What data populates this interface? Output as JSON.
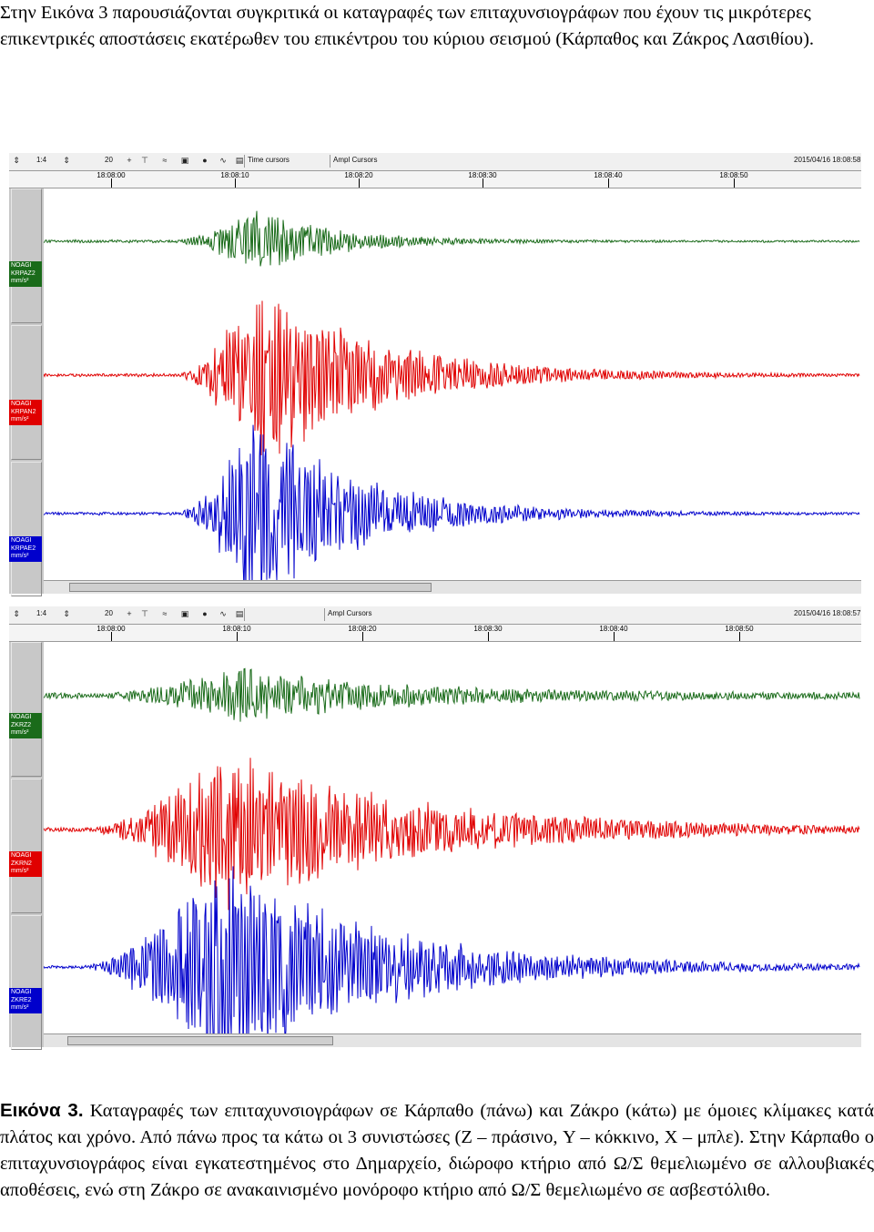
{
  "intro_text": "Στην Εικόνα 3 παρουσιάζονται συγκριτικά οι καταγραφές των επιταχυνσιογράφων που έχουν τις μικρότερες επικεντρικές αποστάσεις εκατέρωθεν του επικέντρου του κύριου σεισμού (Κάρπαθος και Ζάκρος Λασιθίου).",
  "figures": [
    {
      "toolbar": {
        "scale": "1:4",
        "step": "20",
        "time_cursors": "Time cursors",
        "ampl_cursors": "Ampl Cursors",
        "datetime": "2015/04/16 18:08:58"
      },
      "time_ticks": [
        "18:08:00",
        "18:08:10",
        "18:08:20",
        "18:08:30",
        "18:08:40",
        "18:08:50"
      ],
      "channels": [
        {
          "station": "NOAGI",
          "code": "KRPAZ2",
          "unit": "mm/s²",
          "color": "#1a6b1a"
        },
        {
          "station": "NOAGI",
          "code": "KRPAN2",
          "unit": "mm/s²",
          "color": "#e00000"
        },
        {
          "station": "NOAGI",
          "code": "KRPAE2",
          "unit": "mm/s²",
          "color": "#0000cc"
        }
      ]
    },
    {
      "toolbar": {
        "scale": "1:4",
        "step": "20",
        "time_cursors": "",
        "ampl_cursors": "Ampl Cursors",
        "datetime": "2015/04/16 18:08:57"
      },
      "time_ticks": [
        "18:08:00",
        "18:08:10",
        "18:08:20",
        "18:08:30",
        "18:08:40",
        "18:08:50"
      ],
      "channels": [
        {
          "station": "NOAGI",
          "code": "ZKRZ2",
          "unit": "mm/s²",
          "color": "#1a6b1a"
        },
        {
          "station": "NOAGI",
          "code": "ZKRN2",
          "unit": "mm/s²",
          "color": "#e00000"
        },
        {
          "station": "NOAGI",
          "code": "ZKRE2",
          "unit": "mm/s²",
          "color": "#0000cc"
        }
      ]
    }
  ],
  "toolbar_icons": [
    "arrow-up-down-icon",
    "arrow-up-down-icon",
    "zoom-in-icon",
    "zoom-out-icon",
    "pick-icon",
    "filter-icon",
    "fit-icon",
    "print-icon",
    "color-icon",
    "bandpass-icon"
  ],
  "caption": {
    "label": "Εικόνα 3.",
    "text": " Καταγραφές των επιταχυνσιογράφων σε Κάρπαθο (πάνω) και Ζάκρο (κάτω) με όμοιες κλίμακες κατά πλάτος και χρόνο. Από πάνω προς τα κάτω οι 3 συνιστώσες (Z – πράσινο, Y – κόκκινο, X – μπλε). Στην Κάρπαθο ο επιταχυνσιογράφος είναι εγκατεστημένος στο Δημαρχείο, διώροφο κτήριο από Ω/Σ θεμελιωμένο σε αλλουβιακές αποθέσεις, ενώ στη Ζάκρο σε ανακαινισμένο μονόροφο κτήριο από Ω/Σ θεμελιωμένο σε ασβεστόλιθο."
  }
}
